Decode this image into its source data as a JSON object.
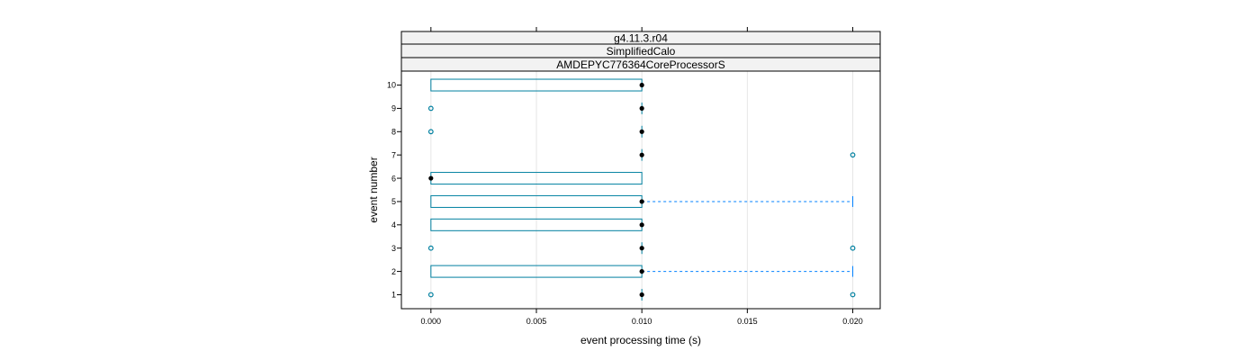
{
  "chart_data": {
    "type": "box",
    "strips": [
      "g4.11.3.r04",
      "SimplifiedCalo",
      "AMDEPYC776364CoreProcessorS"
    ],
    "xlabel": "event processing time (s)",
    "ylabel": "event number",
    "xlim": [
      -0.0014,
      0.0213
    ],
    "ylim": [
      0.4,
      10.6
    ],
    "x_ticks": [
      "0.000",
      "0.005",
      "0.010",
      "0.015",
      "0.020"
    ],
    "x_tick_values": [
      0,
      0.005,
      0.01,
      0.015,
      0.02
    ],
    "y_ticks": [
      "1",
      "2",
      "3",
      "4",
      "5",
      "6",
      "7",
      "8",
      "9",
      "10"
    ],
    "grid": true,
    "colors": {
      "box": "#0080a0",
      "whisker": "#0080ff",
      "median": "#000000",
      "outlier": "#0080a0"
    },
    "boxes": [
      {
        "event": 1,
        "q1": 0.01,
        "median": 0.01,
        "q3": 0.01,
        "whisker_low": 0.01,
        "whisker_high": 0.01,
        "outliers": [
          0.0,
          0.02
        ]
      },
      {
        "event": 2,
        "q1": 0.0,
        "median": 0.01,
        "q3": 0.01,
        "whisker_low": 0.0,
        "whisker_high": 0.02,
        "outliers": []
      },
      {
        "event": 3,
        "q1": 0.01,
        "median": 0.01,
        "q3": 0.01,
        "whisker_low": 0.01,
        "whisker_high": 0.01,
        "outliers": [
          0.0,
          0.02
        ]
      },
      {
        "event": 4,
        "q1": 0.0,
        "median": 0.01,
        "q3": 0.01,
        "whisker_low": 0.0,
        "whisker_high": 0.01,
        "outliers": []
      },
      {
        "event": 5,
        "q1": 0.0,
        "median": 0.01,
        "q3": 0.01,
        "whisker_low": 0.0,
        "whisker_high": 0.02,
        "outliers": []
      },
      {
        "event": 6,
        "q1": 0.0,
        "median": 0.0,
        "q3": 0.01,
        "whisker_low": 0.0,
        "whisker_high": 0.01,
        "outliers": []
      },
      {
        "event": 7,
        "q1": 0.01,
        "median": 0.01,
        "q3": 0.01,
        "whisker_low": 0.01,
        "whisker_high": 0.01,
        "outliers": [
          0.02
        ]
      },
      {
        "event": 8,
        "q1": 0.01,
        "median": 0.01,
        "q3": 0.01,
        "whisker_low": 0.01,
        "whisker_high": 0.01,
        "outliers": [
          0.0
        ]
      },
      {
        "event": 9,
        "q1": 0.01,
        "median": 0.01,
        "q3": 0.01,
        "whisker_low": 0.01,
        "whisker_high": 0.01,
        "outliers": [
          0.0
        ]
      },
      {
        "event": 10,
        "q1": 0.0,
        "median": 0.01,
        "q3": 0.01,
        "whisker_low": 0.0,
        "whisker_high": 0.01,
        "outliers": []
      }
    ]
  }
}
